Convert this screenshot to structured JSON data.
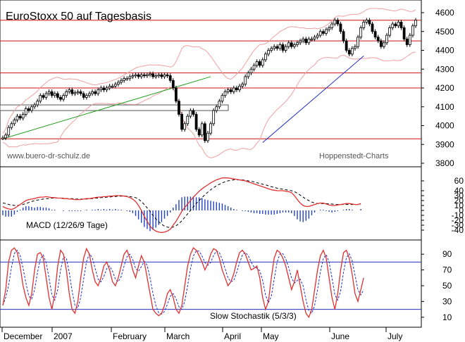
{
  "chart_data": {
    "type": "line",
    "title": "EuroStoxx 50 auf Tagesbasis",
    "source_left": "www.buero-dr-schulz.de",
    "source_right": "Hoppenstedt-Charts",
    "x_labels": [
      "December",
      "2007",
      "February",
      "March",
      "April",
      "May",
      "June",
      "July"
    ],
    "price_panel": {
      "ylim": [
        3800,
        4600
      ],
      "yticks": [
        3800,
        3900,
        4000,
        4100,
        4200,
        4300,
        4400,
        4500,
        4600
      ],
      "horizontal_levels": [
        3930,
        4200,
        4280,
        4450,
        4560
      ],
      "band_box": [
        4080,
        4110
      ],
      "trendlines": [
        {
          "color": "#20a020",
          "from": [
            0,
            3930
          ],
          "to": [
            72,
            4260
          ]
        },
        {
          "color": "#2030c0",
          "from": [
            90,
            3910
          ],
          "to": [
            125,
            4370
          ]
        }
      ],
      "close": [
        3935,
        3950,
        3990,
        4010,
        4030,
        4050,
        4040,
        4060,
        4090,
        4080,
        4100,
        4110,
        4130,
        4160,
        4150,
        4170,
        4180,
        4160,
        4170,
        4150,
        4140,
        4160,
        4180,
        4190,
        4170,
        4175,
        4180,
        4170,
        4150,
        4160,
        4170,
        4180,
        4170,
        4190,
        4200,
        4190,
        4200,
        4210,
        4210,
        4220,
        4230,
        4240,
        4250,
        4250,
        4260,
        4265,
        4270,
        4260,
        4270,
        4265,
        4270,
        4275,
        4260,
        4265,
        4270,
        4260,
        4270,
        4265,
        4240,
        4200,
        4130,
        4060,
        3980,
        4010,
        4050,
        4080,
        4060,
        3980,
        3950,
        4010,
        3920,
        3960,
        4010,
        4080,
        4100,
        4130,
        4160,
        4180,
        4190,
        4180,
        4200,
        4190,
        4210,
        4220,
        4260,
        4280,
        4300,
        4320,
        4340,
        4320,
        4350,
        4380,
        4400,
        4410,
        4420,
        4410,
        4430,
        4400,
        4420,
        4440,
        4420,
        4430,
        4440,
        4450,
        4460,
        4440,
        4460,
        4460,
        4470,
        4480,
        4500,
        4490,
        4510,
        4520,
        4540,
        4560,
        4540,
        4500,
        4450,
        4400,
        4380,
        4410,
        4420,
        4470,
        4520,
        4550,
        4560,
        4540,
        4500,
        4470,
        4450,
        4420,
        4440,
        4480,
        4520,
        4540,
        4530,
        4550,
        4520,
        4460,
        4430,
        4480,
        4530,
        4560
      ]
    },
    "macd_panel": {
      "label": "MACD (12/26/9 Tage)",
      "ylim": [
        -50,
        70
      ],
      "yticks": [
        -40,
        -30,
        -20,
        -10,
        0,
        10,
        20,
        30,
        40,
        60
      ],
      "macd_color": "#e03030",
      "signal_color": "#000000",
      "histogram_color": "#2040c0",
      "macd": [
        8,
        5,
        3,
        2,
        4,
        8,
        12,
        16,
        20,
        22,
        23,
        24,
        26,
        27,
        27,
        28,
        27,
        26,
        26,
        25,
        25,
        24,
        24,
        23,
        23,
        22,
        22,
        22,
        23,
        24,
        24,
        25,
        26,
        27,
        27,
        28,
        28,
        29,
        29,
        30,
        30,
        30,
        29,
        28,
        26,
        23,
        18,
        10,
        0,
        -12,
        -22,
        -32,
        -38,
        -42,
        -44,
        -45,
        -44,
        -42,
        -38,
        -30,
        -22,
        -12,
        -2,
        6,
        13,
        20,
        27,
        33,
        39,
        44,
        48,
        52,
        56,
        59,
        62,
        64,
        66,
        66,
        66,
        65,
        64,
        63,
        62,
        61,
        60,
        58,
        56,
        54,
        52,
        50,
        48,
        46,
        44,
        42,
        41,
        40,
        40,
        40,
        39,
        38,
        36,
        30,
        22,
        15,
        10,
        8,
        8,
        10,
        12,
        14,
        15,
        15,
        13,
        11,
        10,
        10,
        11,
        12,
        13,
        14,
        14,
        13,
        12,
        12,
        14
      ],
      "signal": [
        15,
        14,
        12,
        11,
        10,
        10,
        11,
        12,
        14,
        16,
        18,
        20,
        21,
        22,
        23,
        24,
        24,
        25,
        25,
        25,
        25,
        25,
        24,
        24,
        24,
        23,
        23,
        23,
        23,
        23,
        24,
        24,
        25,
        25,
        26,
        26,
        27,
        27,
        28,
        28,
        29,
        29,
        29,
        29,
        28,
        27,
        26,
        23,
        18,
        12,
        5,
        -2,
        -10,
        -17,
        -23,
        -28,
        -32,
        -34,
        -35,
        -34,
        -31,
        -27,
        -21,
        -14,
        -7,
        0,
        7,
        14,
        20,
        26,
        32,
        37,
        42,
        46,
        50,
        53,
        56,
        58,
        60,
        61,
        62,
        62,
        62,
        62,
        61,
        60,
        59,
        58,
        56,
        55,
        53,
        52,
        50,
        48,
        47,
        45,
        44,
        43,
        42,
        41,
        40,
        38,
        35,
        31,
        27,
        23,
        20,
        17,
        15,
        14,
        14,
        14,
        14,
        13,
        13,
        12,
        12,
        12,
        12,
        12,
        12,
        12,
        12,
        12,
        12
      ]
    },
    "stoch_panel": {
      "label": "Slow Stochastik (5/3/3)",
      "ylim": [
        0,
        100
      ],
      "yticks": [
        10,
        30,
        50,
        70,
        90
      ],
      "levels": [
        20,
        80
      ],
      "k_color": "#e03030",
      "d_color": "#2030c0",
      "k": [
        25,
        45,
        80,
        95,
        98,
        92,
        75,
        50,
        35,
        25,
        40,
        70,
        90,
        92,
        85,
        60,
        35,
        20,
        40,
        75,
        95,
        90,
        70,
        40,
        20,
        15,
        30,
        60,
        85,
        97,
        90,
        70,
        55,
        50,
        60,
        75,
        80,
        70,
        55,
        50,
        60,
        75,
        90,
        95,
        85,
        70,
        60,
        75,
        88,
        80,
        60,
        40,
        20,
        15,
        12,
        15,
        25,
        40,
        45,
        35,
        20,
        15,
        25,
        50,
        75,
        90,
        98,
        95,
        88,
        80,
        70,
        78,
        90,
        97,
        95,
        85,
        70,
        60,
        50,
        55,
        65,
        80,
        92,
        95,
        90,
        80,
        70,
        72,
        75,
        60,
        35,
        20,
        30,
        60,
        85,
        95,
        92,
        85,
        75,
        60,
        45,
        55,
        70,
        50,
        30,
        15,
        10,
        20,
        45,
        70,
        88,
        95,
        85,
        60,
        35,
        20,
        40,
        70,
        92,
        95,
        85,
        65,
        40,
        30,
        45,
        60
      ]
    }
  }
}
